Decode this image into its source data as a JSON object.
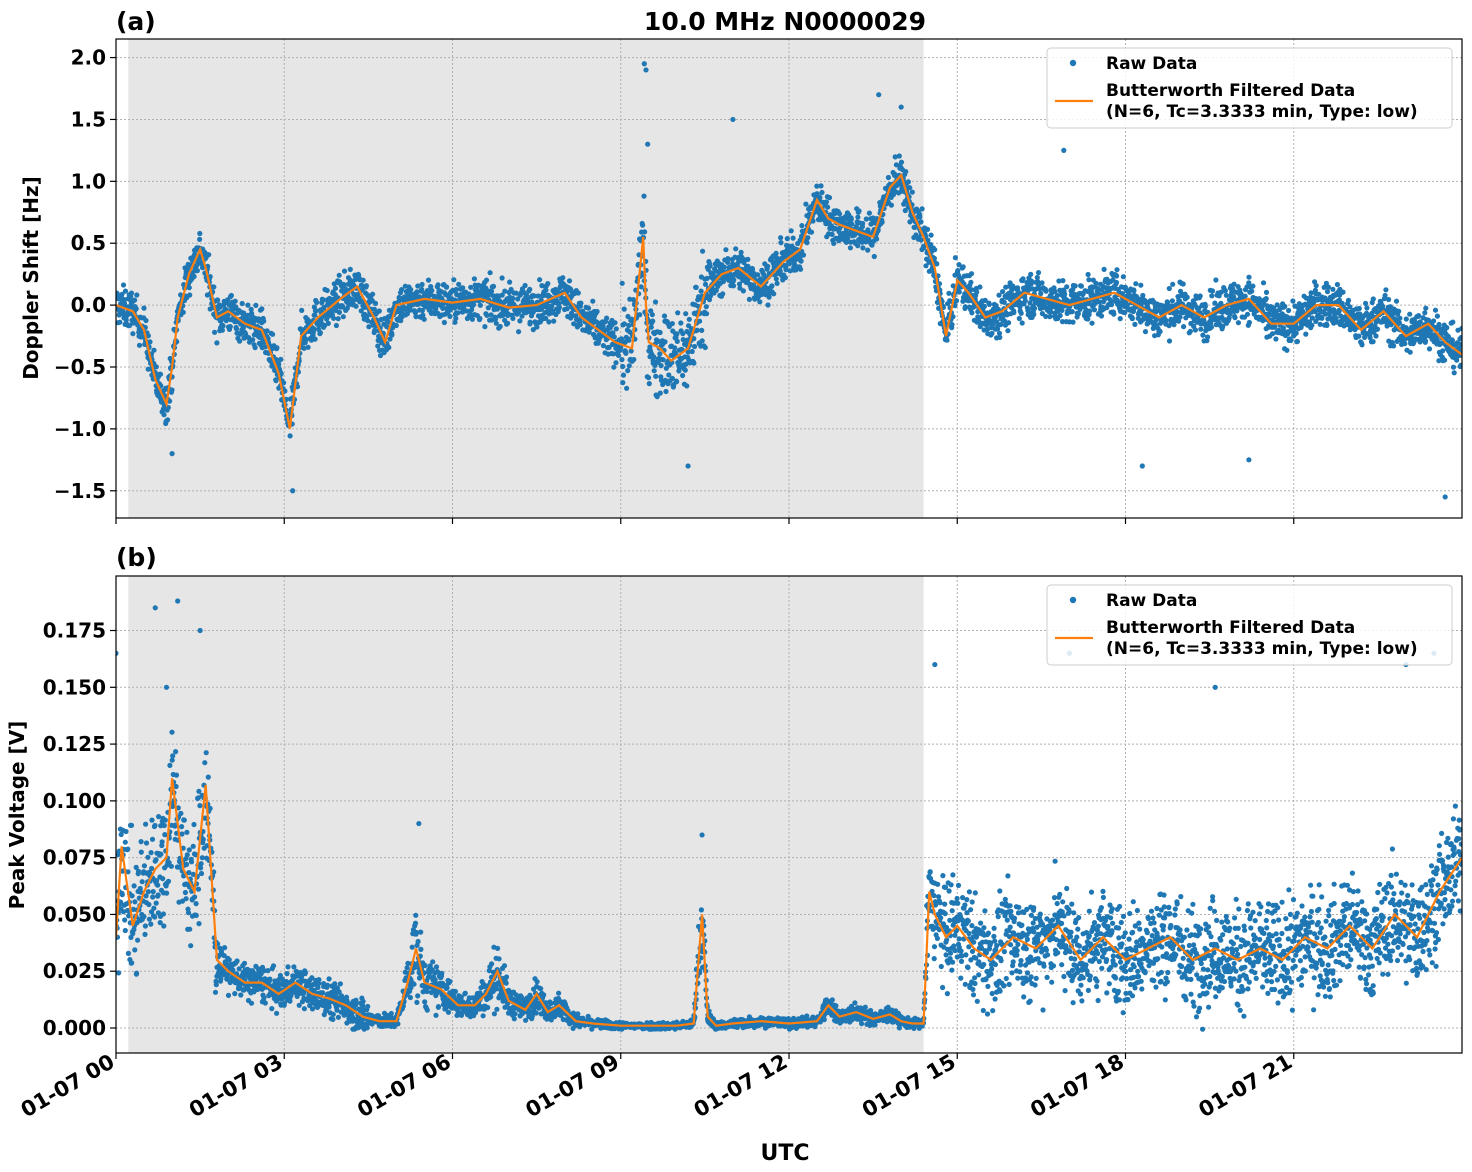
{
  "figure": {
    "title": "10.0 MHz N0000029",
    "xlabel": "UTC",
    "x_ticks": [
      "01-07 00",
      "01-07 03",
      "01-07 06",
      "01-07 09",
      "01-07 12",
      "01-07 15",
      "01-07 18",
      "01-07 21"
    ]
  },
  "colors": {
    "raw": "#1f77b4",
    "filtered": "#ff7f0e",
    "night_shading": "#e6e6e6",
    "grid": "#b0b0b0"
  },
  "legend": {
    "raw_label": "Raw Data",
    "filtered_line1": "Butterworth Filtered Data",
    "filtered_line2": "(N=6, Tc=3.3333 min, Type: low)",
    "placement": "top-right"
  },
  "chart_data": [
    {
      "type": "scatter",
      "panel_label": "(a)",
      "title": "10.0 MHz N0000029",
      "ylabel": "Doppler Shift [Hz]",
      "xlabel": "",
      "x_unit": "hours UTC on 01-07",
      "xlim": [
        0,
        24
      ],
      "ylim": [
        -1.72,
        2.15
      ],
      "y_ticks": [
        "−1.5",
        "−1.0",
        "−0.5",
        "0.0",
        "0.5",
        "1.0",
        "1.5",
        "2.0"
      ],
      "y_tick_values": [
        -1.5,
        -1.0,
        -0.5,
        0.0,
        0.5,
        1.0,
        1.5,
        2.0
      ],
      "shaded_interval": [
        0.22,
        14.4
      ],
      "grid": true,
      "series": [
        {
          "name": "Butterworth Filtered Data",
          "x": [
            0,
            0.3,
            0.5,
            0.7,
            0.9,
            1.0,
            1.1,
            1.3,
            1.5,
            1.6,
            1.8,
            2.0,
            2.3,
            2.6,
            2.9,
            3.1,
            3.3,
            3.6,
            4.0,
            4.3,
            4.6,
            4.8,
            5.0,
            5.5,
            6.0,
            6.5,
            7.0,
            7.5,
            8.0,
            8.3,
            8.6,
            8.9,
            9.2,
            9.4,
            9.45,
            9.5,
            9.7,
            9.9,
            10.2,
            10.5,
            10.8,
            11.1,
            11.5,
            11.9,
            12.2,
            12.5,
            12.7,
            12.9,
            13.2,
            13.5,
            13.8,
            14.0,
            14.2,
            14.4,
            14.6,
            14.8,
            15.0,
            15.2,
            15.5,
            15.8,
            16.2,
            16.6,
            17.0,
            17.4,
            17.8,
            18.2,
            18.6,
            19.0,
            19.4,
            19.8,
            20.2,
            20.6,
            21.0,
            21.4,
            21.8,
            22.2,
            22.6,
            23.0,
            23.4,
            23.7,
            24.0
          ],
          "y": [
            0.0,
            -0.05,
            -0.2,
            -0.6,
            -0.8,
            -0.5,
            -0.1,
            0.25,
            0.45,
            0.3,
            -0.1,
            -0.05,
            -0.15,
            -0.2,
            -0.55,
            -1.0,
            -0.25,
            -0.1,
            0.05,
            0.15,
            -0.1,
            -0.3,
            0.0,
            0.05,
            0.02,
            0.05,
            -0.02,
            0.0,
            0.1,
            -0.1,
            -0.2,
            -0.3,
            -0.35,
            0.55,
            0.0,
            -0.3,
            -0.35,
            -0.45,
            -0.35,
            0.1,
            0.25,
            0.3,
            0.15,
            0.35,
            0.45,
            0.85,
            0.7,
            0.65,
            0.6,
            0.55,
            0.95,
            1.05,
            0.75,
            0.55,
            0.3,
            -0.25,
            0.2,
            0.1,
            -0.1,
            -0.05,
            0.1,
            0.05,
            0.0,
            0.05,
            0.1,
            0.0,
            -0.1,
            0.0,
            -0.1,
            0.0,
            0.05,
            -0.15,
            -0.15,
            0.0,
            0.0,
            -0.2,
            -0.05,
            -0.25,
            -0.15,
            -0.3,
            -0.4
          ]
        },
        {
          "name": "Raw Data",
          "x": [
            1.0,
            3.15,
            9.42,
            9.45,
            9.48,
            10.2,
            11.0,
            13.6,
            14.0,
            16.9,
            18.3,
            20.2,
            23.7
          ],
          "y": [
            -1.2,
            -1.5,
            1.95,
            1.9,
            1.3,
            -1.3,
            1.5,
            1.7,
            1.6,
            1.25,
            -1.3,
            -1.25,
            -1.55
          ]
        }
      ]
    },
    {
      "type": "scatter",
      "panel_label": "(b)",
      "title": "",
      "ylabel": "Peak Voltage [V]",
      "xlabel": "UTC",
      "x_unit": "hours UTC on 01-07",
      "xlim": [
        0,
        24
      ],
      "ylim": [
        -0.011,
        0.199
      ],
      "y_ticks": [
        "0.000",
        "0.025",
        "0.050",
        "0.075",
        "0.100",
        "0.125",
        "0.150",
        "0.175"
      ],
      "y_tick_values": [
        0.0,
        0.025,
        0.05,
        0.075,
        0.1,
        0.125,
        0.15,
        0.175
      ],
      "shaded_interval": [
        0.22,
        14.4
      ],
      "grid": true,
      "series": [
        {
          "name": "Butterworth Filtered Data",
          "x": [
            0,
            0.1,
            0.3,
            0.5,
            0.7,
            0.9,
            1.0,
            1.2,
            1.4,
            1.6,
            1.8,
            2.0,
            2.3,
            2.6,
            2.9,
            3.2,
            3.5,
            3.8,
            4.1,
            4.4,
            4.7,
            5.0,
            5.2,
            5.35,
            5.5,
            5.8,
            6.1,
            6.4,
            6.6,
            6.8,
            7.0,
            7.3,
            7.5,
            7.7,
            7.9,
            8.2,
            8.5,
            9.0,
            9.5,
            10.0,
            10.3,
            10.45,
            10.55,
            10.7,
            11.0,
            11.5,
            12.0,
            12.5,
            12.7,
            12.9,
            13.2,
            13.5,
            13.8,
            14.0,
            14.2,
            14.4,
            14.5,
            14.6,
            14.8,
            15.0,
            15.3,
            15.6,
            16.0,
            16.4,
            16.8,
            17.2,
            17.6,
            18.0,
            18.4,
            18.8,
            19.2,
            19.6,
            20.0,
            20.4,
            20.8,
            21.2,
            21.6,
            22.0,
            22.4,
            22.8,
            23.2,
            23.6,
            24.0
          ],
          "y": [
            0.04,
            0.08,
            0.045,
            0.06,
            0.07,
            0.075,
            0.11,
            0.07,
            0.06,
            0.107,
            0.03,
            0.025,
            0.02,
            0.02,
            0.015,
            0.02,
            0.015,
            0.013,
            0.01,
            0.005,
            0.003,
            0.003,
            0.02,
            0.035,
            0.02,
            0.017,
            0.01,
            0.01,
            0.015,
            0.025,
            0.012,
            0.008,
            0.015,
            0.007,
            0.01,
            0.003,
            0.002,
            0.001,
            0.001,
            0.001,
            0.002,
            0.05,
            0.005,
            0.001,
            0.002,
            0.003,
            0.002,
            0.003,
            0.01,
            0.005,
            0.007,
            0.004,
            0.006,
            0.003,
            0.002,
            0.002,
            0.06,
            0.05,
            0.04,
            0.045,
            0.035,
            0.03,
            0.04,
            0.035,
            0.045,
            0.03,
            0.04,
            0.03,
            0.035,
            0.04,
            0.03,
            0.035,
            0.03,
            0.035,
            0.03,
            0.04,
            0.035,
            0.045,
            0.035,
            0.05,
            0.04,
            0.06,
            0.075
          ]
        },
        {
          "name": "Raw Data",
          "x": [
            0.0,
            0.7,
            0.9,
            1.1,
            1.5,
            5.4,
            9.0,
            10.45,
            14.6,
            17.0,
            19.6,
            23.0,
            23.5
          ],
          "y": [
            0.165,
            0.185,
            0.15,
            0.188,
            0.175,
            0.09,
            0.002,
            0.085,
            0.16,
            0.165,
            0.15,
            0.16,
            0.165
          ]
        }
      ]
    }
  ]
}
